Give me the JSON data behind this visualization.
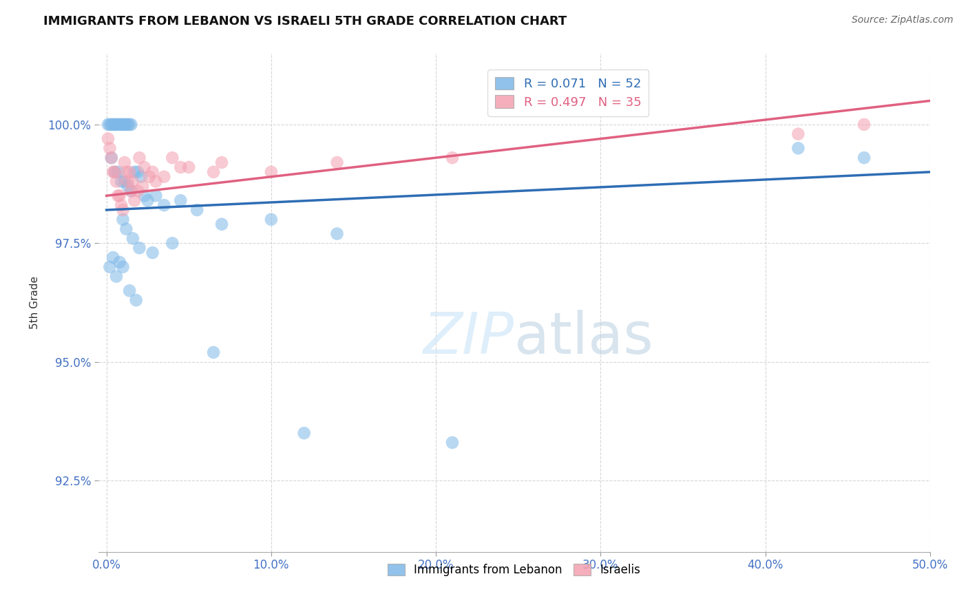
{
  "title": "IMMIGRANTS FROM LEBANON VS ISRAELI 5TH GRADE CORRELATION CHART",
  "source": "Source: ZipAtlas.com",
  "ylabel": "5th Grade",
  "legend_label1": "Immigrants from Lebanon",
  "legend_label2": "Israelis",
  "R1": 0.071,
  "N1": 52,
  "R2": 0.497,
  "N2": 35,
  "xlim": [
    -0.5,
    50.0
  ],
  "ylim": [
    91.0,
    101.5
  ],
  "yticks": [
    92.5,
    95.0,
    97.5,
    100.0
  ],
  "xticks": [
    0.0,
    10.0,
    20.0,
    30.0,
    40.0,
    50.0
  ],
  "xtick_labels": [
    "0.0%",
    "10.0%",
    "20.0%",
    "30.0%",
    "40.0%",
    "50.0%"
  ],
  "ytick_labels": [
    "92.5%",
    "95.0%",
    "97.5%",
    "100.0%"
  ],
  "color_blue": "#7EB8E8",
  "color_pink": "#F4A0B0",
  "line_color_blue": "#2E6DB4",
  "line_color_pink": "#E06080",
  "background_color": "#FFFFFF",
  "blue_x": [
    0.1,
    0.2,
    0.3,
    0.4,
    0.5,
    0.6,
    0.7,
    0.8,
    0.9,
    1.0,
    1.1,
    1.2,
    1.3,
    1.4,
    1.5,
    0.3,
    0.5,
    0.7,
    0.9,
    1.1,
    1.3,
    1.5,
    1.7,
    1.9,
    2.1,
    2.3,
    2.5,
    3.0,
    3.5,
    4.5,
    5.5,
    7.0,
    10.0,
    14.0,
    1.0,
    1.2,
    1.6,
    2.0,
    2.8,
    4.0,
    6.5,
    12.0,
    21.0,
    42.0,
    46.0,
    0.2,
    0.4,
    0.6,
    0.8,
    1.0,
    1.4,
    1.8
  ],
  "blue_y": [
    100.0,
    100.0,
    100.0,
    100.0,
    100.0,
    100.0,
    100.0,
    100.0,
    100.0,
    100.0,
    100.0,
    100.0,
    100.0,
    100.0,
    100.0,
    99.3,
    99.0,
    99.0,
    98.8,
    98.8,
    98.7,
    98.6,
    99.0,
    99.0,
    98.9,
    98.5,
    98.4,
    98.5,
    98.3,
    98.4,
    98.2,
    97.9,
    98.0,
    97.7,
    98.0,
    97.8,
    97.6,
    97.4,
    97.3,
    97.5,
    95.2,
    93.5,
    93.3,
    99.5,
    99.3,
    97.0,
    97.2,
    96.8,
    97.1,
    97.0,
    96.5,
    96.3
  ],
  "pink_x": [
    0.1,
    0.2,
    0.3,
    0.4,
    0.5,
    0.6,
    0.7,
    0.8,
    0.9,
    1.0,
    1.1,
    1.2,
    1.3,
    1.5,
    1.7,
    2.0,
    2.3,
    2.6,
    3.0,
    4.0,
    5.0,
    6.5,
    10.0,
    14.0,
    21.0,
    1.4,
    1.6,
    1.9,
    2.2,
    2.8,
    3.5,
    4.5,
    7.0,
    42.0,
    46.0
  ],
  "pink_y": [
    99.7,
    99.5,
    99.3,
    99.0,
    99.0,
    98.8,
    98.5,
    98.5,
    98.3,
    98.2,
    99.2,
    99.0,
    98.8,
    98.6,
    98.4,
    99.3,
    99.1,
    98.9,
    98.8,
    99.3,
    99.1,
    99.0,
    99.0,
    99.2,
    99.3,
    99.0,
    98.8,
    98.6,
    98.7,
    99.0,
    98.9,
    99.1,
    99.2,
    99.8,
    100.0
  ],
  "blue_line_x": [
    0.0,
    50.0
  ],
  "blue_line_y": [
    98.2,
    99.0
  ],
  "pink_line_x": [
    0.0,
    50.0
  ],
  "pink_line_y": [
    98.5,
    100.5
  ]
}
